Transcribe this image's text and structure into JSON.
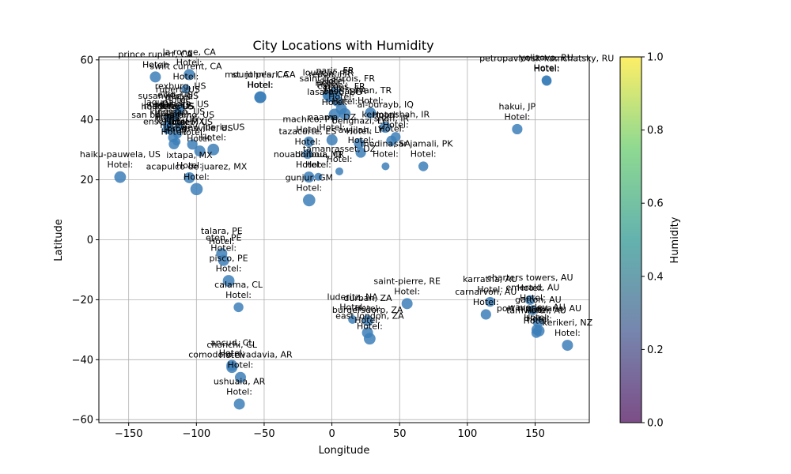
{
  "chart_data": {
    "type": "scatter",
    "title": "City Locations with Humidity",
    "xlabel": "Longitude",
    "ylabel": "Latitude",
    "xlim": [
      -172,
      190
    ],
    "ylim": [
      -61,
      61
    ],
    "xticks": [
      -150,
      -100,
      -50,
      0,
      50,
      100,
      150
    ],
    "yticks": [
      -60,
      -40,
      -20,
      0,
      20,
      40,
      60
    ],
    "grid": true,
    "colorbar": {
      "label": "Humidity",
      "range": [
        0,
        1
      ],
      "ticks": [
        "0.0",
        "0.2",
        "0.4",
        "0.6",
        "0.8",
        "1.0"
      ]
    },
    "point_color": "#3d7fb8",
    "cities": [
      {
        "name": "prince rupert, CA",
        "lon": -130.3,
        "lat": 54.3,
        "size": 1.0
      },
      {
        "name": "la ronge, CA",
        "lon": -105.3,
        "lat": 55.1,
        "size": 1.0
      },
      {
        "name": "swift current, CA",
        "lon": -107.8,
        "lat": 50.3,
        "size": 0.7
      },
      {
        "name": "rupert, US",
        "lon": -113.7,
        "lat": 42.6,
        "size": 0.6
      },
      {
        "name": "susanville, US",
        "lon": -120.7,
        "lat": 40.4,
        "size": 0.6
      },
      {
        "name": "rexburg, US",
        "lon": -111.8,
        "lat": 43.8,
        "size": 0.6
      },
      {
        "name": "laguna, US",
        "lon": -121.4,
        "lat": 38.4,
        "size": 0.7
      },
      {
        "name": "elko, US",
        "lon": -115.8,
        "lat": 40.8,
        "size": 0.6
      },
      {
        "name": "san bernardino, US",
        "lon": -117.3,
        "lat": 34.1,
        "size": 0.8
      },
      {
        "name": "madera, US",
        "lon": -120.1,
        "lat": 37.0,
        "size": 0.8
      },
      {
        "name": "hollister, US",
        "lon": -121.4,
        "lat": 36.9,
        "size": 0.8
      },
      {
        "name": "yuma, US",
        "lon": -114.6,
        "lat": 32.7,
        "size": 0.5
      },
      {
        "name": "ensenada, MX",
        "lon": -116.6,
        "lat": 31.9,
        "size": 0.9
      },
      {
        "name": "cedar city, US",
        "lon": -113.1,
        "lat": 37.7,
        "size": 0.6
      },
      {
        "name": "kingman, US",
        "lon": -114.0,
        "lat": 35.2,
        "size": 0.6
      },
      {
        "name": "caleb, US",
        "lon": -103.0,
        "lat": 31.8,
        "size": 0.9
      },
      {
        "name": "brownsville, US",
        "lon": -97.5,
        "lat": 29.6,
        "size": 1.0
      },
      {
        "name": "new iberia, US",
        "lon": -87.5,
        "lat": 30.1,
        "size": 1.1
      },
      {
        "name": "haiku-pauwela, US",
        "lon": -156.3,
        "lat": 20.9,
        "size": 1.1
      },
      {
        "name": "ixtapa, MX",
        "lon": -105.2,
        "lat": 20.7,
        "size": 1.0
      },
      {
        "name": "acapulco de juarez, MX",
        "lon": -99.9,
        "lat": 16.9,
        "size": 1.2
      },
      {
        "name": "st. john's, CA",
        "lon": -52.7,
        "lat": 47.6,
        "size": 1.1
      },
      {
        "name": "mount pearl, CA",
        "lon": -53.0,
        "lat": 47.5,
        "size": 1.1
      },
      {
        "name": "paris, FR",
        "lon": 2.3,
        "lat": 48.9,
        "size": 1.1
      },
      {
        "name": "loudeac, FR",
        "lon": -2.8,
        "lat": 48.2,
        "size": 1.0
      },
      {
        "name": "redon, FR",
        "lon": -1.7,
        "lat": 47.7,
        "size": 1.0
      },
      {
        "name": "saint-francois, FR",
        "lon": 3.9,
        "lat": 46.3,
        "size": 1.0
      },
      {
        "name": "cannes, FR",
        "lon": 7.0,
        "lat": 43.6,
        "size": 1.0
      },
      {
        "name": "bastia, FR",
        "lon": 9.5,
        "lat": 42.0,
        "size": 1.1
      },
      {
        "name": "lasarevo, BG",
        "lon": 2.0,
        "lat": 41.8,
        "size": 1.1
      },
      {
        "name": "silvan, TR",
        "lon": 28.5,
        "lat": 42.3,
        "size": 1.0
      },
      {
        "name": "machico, PT",
        "lon": -16.9,
        "lat": 32.7,
        "size": 0.9
      },
      {
        "name": "naama, DZ",
        "lon": 0.1,
        "lat": 33.3,
        "size": 1.0
      },
      {
        "name": "benghazi, LY",
        "lon": 20.1,
        "lat": 32.1,
        "size": 0.9
      },
      {
        "name": "al-burayb, IQ",
        "lon": 39.5,
        "lat": 37.5,
        "size": 1.0
      },
      {
        "name": "shah, IR",
        "lon": 44.0,
        "lat": 33.0,
        "size": 0.9
      },
      {
        "name": "kermanshah, IR",
        "lon": 47.1,
        "lat": 34.3,
        "size": 0.8
      },
      {
        "name": "tazacorte, ES",
        "lon": -17.9,
        "lat": 28.6,
        "size": 0.8
      },
      {
        "name": "awjilah, LY",
        "lon": 21.3,
        "lat": 29.1,
        "size": 0.9
      },
      {
        "name": "medina, SA",
        "lon": 39.6,
        "lat": 24.5,
        "size": 0.5
      },
      {
        "name": "sar jamali, PK",
        "lon": 67.5,
        "lat": 24.5,
        "size": 0.8
      },
      {
        "name": "tamanrasset, DZ",
        "lon": 5.5,
        "lat": 22.8,
        "size": 0.5
      },
      {
        "name": "nouadhibou, MR",
        "lon": -17.0,
        "lat": 20.9,
        "size": 1.0
      },
      {
        "name": "bonoua, CI",
        "lon": -10.0,
        "lat": 21.0,
        "size": 0.5
      },
      {
        "name": "gunjur, GM",
        "lon": -16.8,
        "lat": 13.2,
        "size": 1.2
      },
      {
        "name": "petropavlovsk-kamchatsky, RU",
        "lon": 158.6,
        "lat": 53.0,
        "size": 0.8
      },
      {
        "name": "yelizovo, RU",
        "lon": 158.4,
        "lat": 53.2,
        "size": 0.8
      },
      {
        "name": "hakui, JP",
        "lon": 136.8,
        "lat": 36.9,
        "size": 0.9
      },
      {
        "name": "talara, PE",
        "lon": -81.3,
        "lat": -4.6,
        "size": 1.0
      },
      {
        "name": "eten, PE",
        "lon": -79.9,
        "lat": -6.9,
        "size": 1.0
      },
      {
        "name": "pisco, PE",
        "lon": -76.2,
        "lat": -13.7,
        "size": 1.1
      },
      {
        "name": "calama, CL",
        "lon": -68.9,
        "lat": -22.5,
        "size": 0.8
      },
      {
        "name": "ancud, CL",
        "lon": -73.8,
        "lat": -41.9,
        "size": 1.0
      },
      {
        "name": "chonchi, CL",
        "lon": -73.8,
        "lat": -42.6,
        "size": 1.0
      },
      {
        "name": "comodoro rivadavia, AR",
        "lon": -67.5,
        "lat": -45.9,
        "size": 1.0
      },
      {
        "name": "ushuaia, AR",
        "lon": -68.3,
        "lat": -54.8,
        "size": 1.0
      },
      {
        "name": "saint-pierre, RE",
        "lon": 55.5,
        "lat": -21.3,
        "size": 1.0
      },
      {
        "name": "luderitz, NA",
        "lon": 15.2,
        "lat": -26.6,
        "size": 0.6
      },
      {
        "name": "durban, ZA",
        "lon": 26.5,
        "lat": -27.0,
        "size": 1.0
      },
      {
        "name": "burgersdorp, ZA",
        "lon": 26.3,
        "lat": -31.0,
        "size": 1.0
      },
      {
        "name": "east london, ZA",
        "lon": 27.9,
        "lat": -33.0,
        "size": 1.1
      },
      {
        "name": "karratha, AU",
        "lon": 116.8,
        "lat": -20.7,
        "size": 0.8
      },
      {
        "name": "carnarvon, AU",
        "lon": 113.7,
        "lat": -24.9,
        "size": 0.9
      },
      {
        "name": "charters towers, AU",
        "lon": 146.3,
        "lat": -20.1,
        "size": 0.8
      },
      {
        "name": "emerald, AU",
        "lon": 148.2,
        "lat": -23.5,
        "size": 0.8
      },
      {
        "name": "gatton, AU",
        "lon": 152.3,
        "lat": -27.6,
        "size": 0.9
      },
      {
        "name": "tamworth, AU",
        "lon": 150.9,
        "lat": -31.1,
        "size": 0.8
      },
      {
        "name": "waverley, AU",
        "lon": 151.2,
        "lat": -30.0,
        "size": 0.9
      },
      {
        "name": "port macquarie, AU",
        "lon": 152.9,
        "lat": -30.4,
        "size": 1.0
      },
      {
        "name": "kerikeri, NZ",
        "lon": 173.9,
        "lat": -35.2,
        "size": 1.0
      }
    ]
  }
}
